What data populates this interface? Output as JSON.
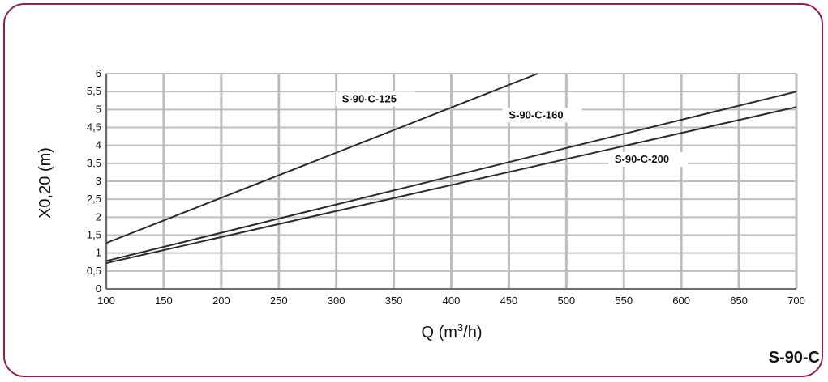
{
  "badge": "S-90-C",
  "colors": {
    "frame": "#8c1d5a",
    "grid": "#bdbdbd",
    "line": "#2b2b2b"
  },
  "chart_data": {
    "type": "line",
    "xlabel": "Q (m³/h)",
    "ylabel": "X0,20 (m)",
    "xlim": [
      100,
      700
    ],
    "ylim": [
      0,
      6
    ],
    "x_ticks": [
      "100",
      "150",
      "200",
      "250",
      "300",
      "350",
      "400",
      "450",
      "500",
      "550",
      "600",
      "650",
      "700"
    ],
    "y_ticks": [
      "0",
      "0,5",
      "1",
      "1,5",
      "2",
      "2,5",
      "3",
      "3,5",
      "4",
      "4,5",
      "5",
      "5,5",
      "6"
    ],
    "grid": true,
    "series": [
      {
        "name": "S-90-C-125",
        "x": [
          100,
          475
        ],
        "y": [
          1.28,
          6.0
        ],
        "label_anchor": {
          "x": 305,
          "y": 5.2
        }
      },
      {
        "name": "S-90-C-160",
        "x": [
          100,
          700
        ],
        "y": [
          0.78,
          5.5
        ],
        "label_anchor": {
          "x": 450,
          "y": 4.75
        }
      },
      {
        "name": "S-90-C-200",
        "x": [
          100,
          700
        ],
        "y": [
          0.72,
          5.07
        ],
        "label_anchor": {
          "x": 542,
          "y": 3.52
        }
      }
    ]
  }
}
